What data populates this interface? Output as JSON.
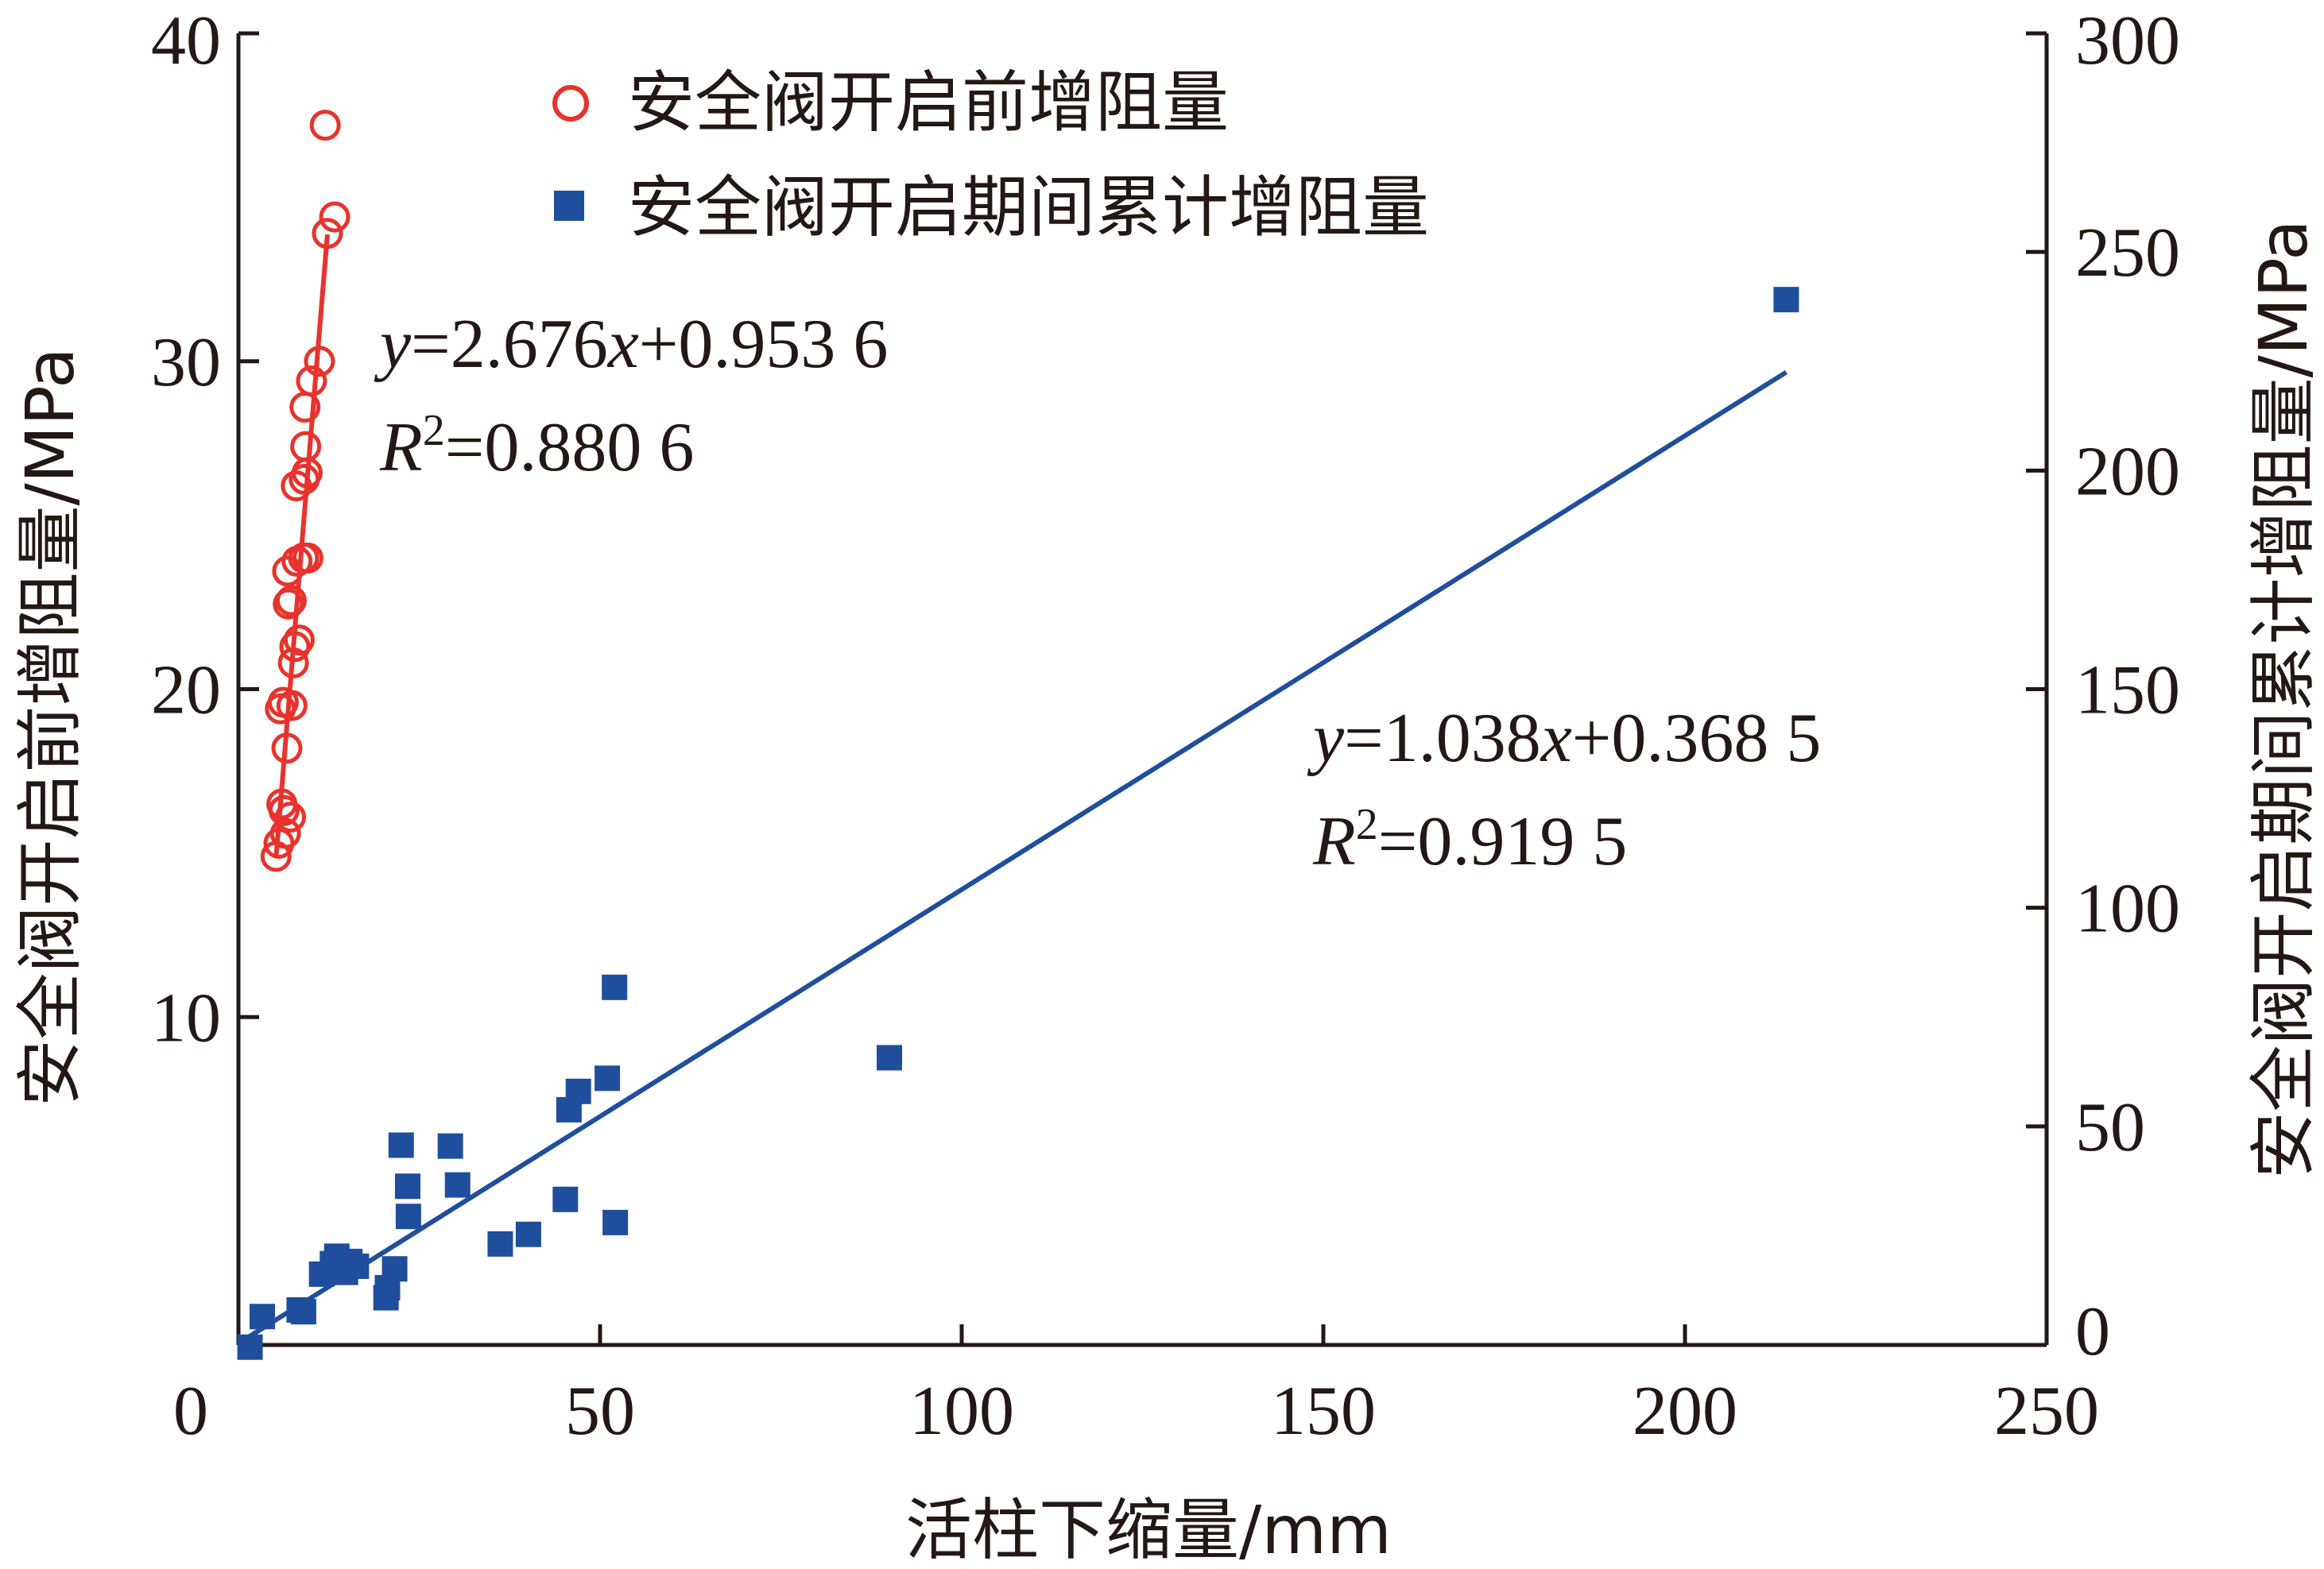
{
  "chart_data": {
    "type": "scatter",
    "xlabel": "活柱下缩量/mm",
    "ylabel_left": "安全阀开启前增阻量/MPa",
    "ylabel_right": "安全阀开启期间累计增阻量/MPa",
    "xlim": [
      0,
      250
    ],
    "ylim_left": [
      0,
      40
    ],
    "ylim_right": [
      0,
      300
    ],
    "x_ticks": [
      "0",
      "50",
      "100",
      "150",
      "200",
      "250"
    ],
    "y_left_ticks": [
      "10",
      "20",
      "30",
      "40"
    ],
    "y_right_ticks": [
      "0",
      "50",
      "100",
      "150",
      "200",
      "250",
      "300"
    ],
    "legend_position": "top",
    "series": [
      {
        "name": "安全阀开启前增阻量",
        "axis": "left",
        "marker": "open-circle",
        "color": "#e8332c",
        "points": [
          [
            5.2,
            14.9
          ],
          [
            5.6,
            15.3
          ],
          [
            6.0,
            16.5
          ],
          [
            6.3,
            16.3
          ],
          [
            6.5,
            15.6
          ],
          [
            7.2,
            16.1
          ],
          [
            6.7,
            18.2
          ],
          [
            5.8,
            19.4
          ],
          [
            6.2,
            19.6
          ],
          [
            7.4,
            19.5
          ],
          [
            7.6,
            20.8
          ],
          [
            7.8,
            21.3
          ],
          [
            8.4,
            21.5
          ],
          [
            6.9,
            22.6
          ],
          [
            7.3,
            22.7
          ],
          [
            6.8,
            23.6
          ],
          [
            8.1,
            23.9
          ],
          [
            9.0,
            24.0
          ],
          [
            9.6,
            24.0
          ],
          [
            8.0,
            26.2
          ],
          [
            9.1,
            26.4
          ],
          [
            9.5,
            26.6
          ],
          [
            9.3,
            27.4
          ],
          [
            9.2,
            28.6
          ],
          [
            10.1,
            29.4
          ],
          [
            11.2,
            30.0
          ],
          [
            12.3,
            33.9
          ],
          [
            13.3,
            34.4
          ],
          [
            12.0,
            37.2
          ]
        ],
        "fit": {
          "slope": 2.676,
          "intercept": 0.9536,
          "x_range": [
            5.2,
            12.3
          ],
          "equation": "y=2.676x+0.953 6",
          "r2": "0.880 6"
        }
      },
      {
        "name": "安全阀开启期间累计增阻量",
        "axis": "right",
        "marker": "filled-square",
        "color": "#1f4e9d",
        "points": [
          [
            1.6,
            -0.5
          ],
          [
            3.3,
            6.5
          ],
          [
            8.4,
            8.0
          ],
          [
            9.0,
            7.6
          ],
          [
            11.5,
            16.2
          ],
          [
            13.0,
            18.6
          ],
          [
            13.6,
            20.3
          ],
          [
            14.8,
            16.6
          ],
          [
            15.4,
            19.1
          ],
          [
            16.3,
            18.0
          ],
          [
            20.4,
            10.8
          ],
          [
            20.6,
            13.1
          ],
          [
            21.6,
            17.4
          ],
          [
            22.5,
            45.7
          ],
          [
            23.4,
            36.3
          ],
          [
            23.5,
            29.4
          ],
          [
            29.3,
            45.5
          ],
          [
            30.3,
            36.6
          ],
          [
            36.2,
            23.1
          ],
          [
            40.1,
            25.3
          ],
          [
            45.2,
            33.3
          ],
          [
            45.7,
            53.8
          ],
          [
            47.0,
            58.0
          ],
          [
            51.0,
            61.0
          ],
          [
            52.0,
            81.8
          ],
          [
            52.1,
            28.0
          ],
          [
            90.0,
            65.7
          ],
          [
            214.0,
            239.1
          ]
        ],
        "fit": {
          "slope": 1.038,
          "intercept": 0.3685,
          "x_range": [
            0,
            214
          ],
          "equation": "y=1.038x+0.368 5",
          "r2": "0.919 5"
        }
      }
    ]
  }
}
